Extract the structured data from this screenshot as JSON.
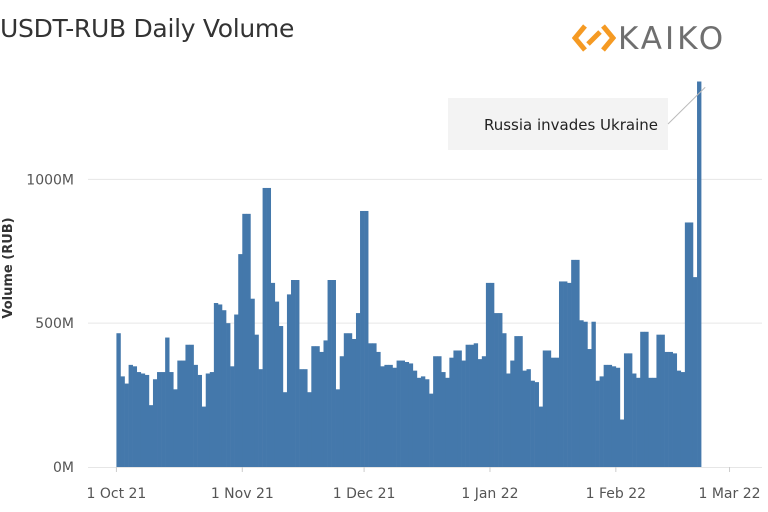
{
  "brand": {
    "logo_text": "KAIKO",
    "logo_color": "#f59a23"
  },
  "chart_data": {
    "type": "bar",
    "title": "USDT-RUB Daily Volume",
    "xlabel": "",
    "ylabel": "Volume (RUB)",
    "ylim": [
      0,
      1380
    ],
    "yticks": [
      0,
      500,
      1000
    ],
    "ytick_labels": [
      "0M",
      "500M",
      "1000M"
    ],
    "xtick_dates": [
      "2021-10-01",
      "2021-11-01",
      "2021-12-01",
      "2022-01-01",
      "2022-02-01",
      "2022-03-01"
    ],
    "xtick_labels": [
      "1 Oct 21",
      "1 Nov 21",
      "1 Dec 21",
      "1 Jan 22",
      "1 Feb 22",
      "1 Mar 22"
    ],
    "x_range": [
      "2021-09-24",
      "2022-03-09"
    ],
    "grid": true,
    "bar_color": "#4478ab",
    "unit": "M RUB",
    "start_date": "2021-10-01",
    "values": [
      465,
      315,
      290,
      355,
      350,
      330,
      325,
      320,
      215,
      305,
      330,
      330,
      450,
      330,
      270,
      370,
      370,
      425,
      425,
      355,
      320,
      210,
      325,
      330,
      570,
      565,
      545,
      500,
      350,
      530,
      740,
      880,
      880,
      585,
      460,
      340,
      970,
      970,
      640,
      575,
      490,
      260,
      600,
      650,
      650,
      340,
      340,
      260,
      420,
      420,
      400,
      440,
      650,
      650,
      270,
      385,
      465,
      465,
      445,
      535,
      890,
      890,
      430,
      430,
      400,
      350,
      355,
      355,
      345,
      370,
      370,
      365,
      360,
      335,
      310,
      315,
      305,
      255,
      385,
      385,
      330,
      310,
      380,
      405,
      405,
      370,
      425,
      425,
      430,
      375,
      385,
      640,
      640,
      535,
      535,
      465,
      325,
      370,
      455,
      455,
      335,
      340,
      300,
      295,
      210,
      405,
      405,
      380,
      380,
      645,
      645,
      640,
      720,
      720,
      510,
      505,
      410,
      505,
      300,
      315,
      355,
      355,
      350,
      345,
      165,
      395,
      395,
      325,
      310,
      470,
      470,
      310,
      310,
      460,
      460,
      400,
      400,
      395,
      335,
      330,
      850,
      850,
      660,
      1340
    ]
  },
  "annotation": {
    "text": "Russia invades Ukraine",
    "target_date": "2022-02-24"
  }
}
